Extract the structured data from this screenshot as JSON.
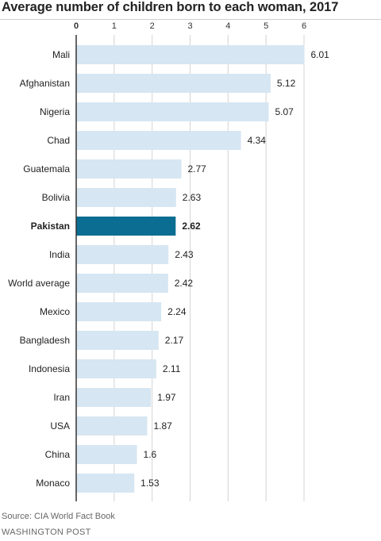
{
  "chart_data": {
    "type": "bar",
    "orientation": "horizontal",
    "title": "Average number of children born to each woman, 2017",
    "categories": [
      "Mali",
      "Afghanistan",
      "Nigeria",
      "Chad",
      "Guatemala",
      "Bolivia",
      "Pakistan",
      "India",
      "World average",
      "Mexico",
      "Bangladesh",
      "Indonesia",
      "Iran",
      "USA",
      "China",
      "Monaco"
    ],
    "values": [
      6.01,
      5.12,
      5.07,
      4.34,
      2.77,
      2.63,
      2.62,
      2.43,
      2.42,
      2.24,
      2.17,
      2.11,
      1.97,
      1.87,
      1.6,
      1.53
    ],
    "value_labels": [
      "6.01",
      "5.12",
      "5.07",
      "4.34",
      "2.77",
      "2.63",
      "2.62",
      "2.43",
      "2.42",
      "2.24",
      "2.17",
      "2.11",
      "1.97",
      "1.87",
      "1.6",
      "1.53"
    ],
    "highlight": "Pakistan",
    "xticks": [
      0,
      1,
      2,
      3,
      4,
      5,
      6
    ],
    "xlim": [
      0,
      6
    ],
    "axis_position": "top",
    "grid": true,
    "colors": {
      "bar": "#d6e6f2",
      "highlight": "#0a6d91",
      "grid": "#d4d4d4",
      "zero_line": "#333333"
    }
  },
  "source": "Source: CIA World Fact Book",
  "credit": "WASHINGTON POST"
}
